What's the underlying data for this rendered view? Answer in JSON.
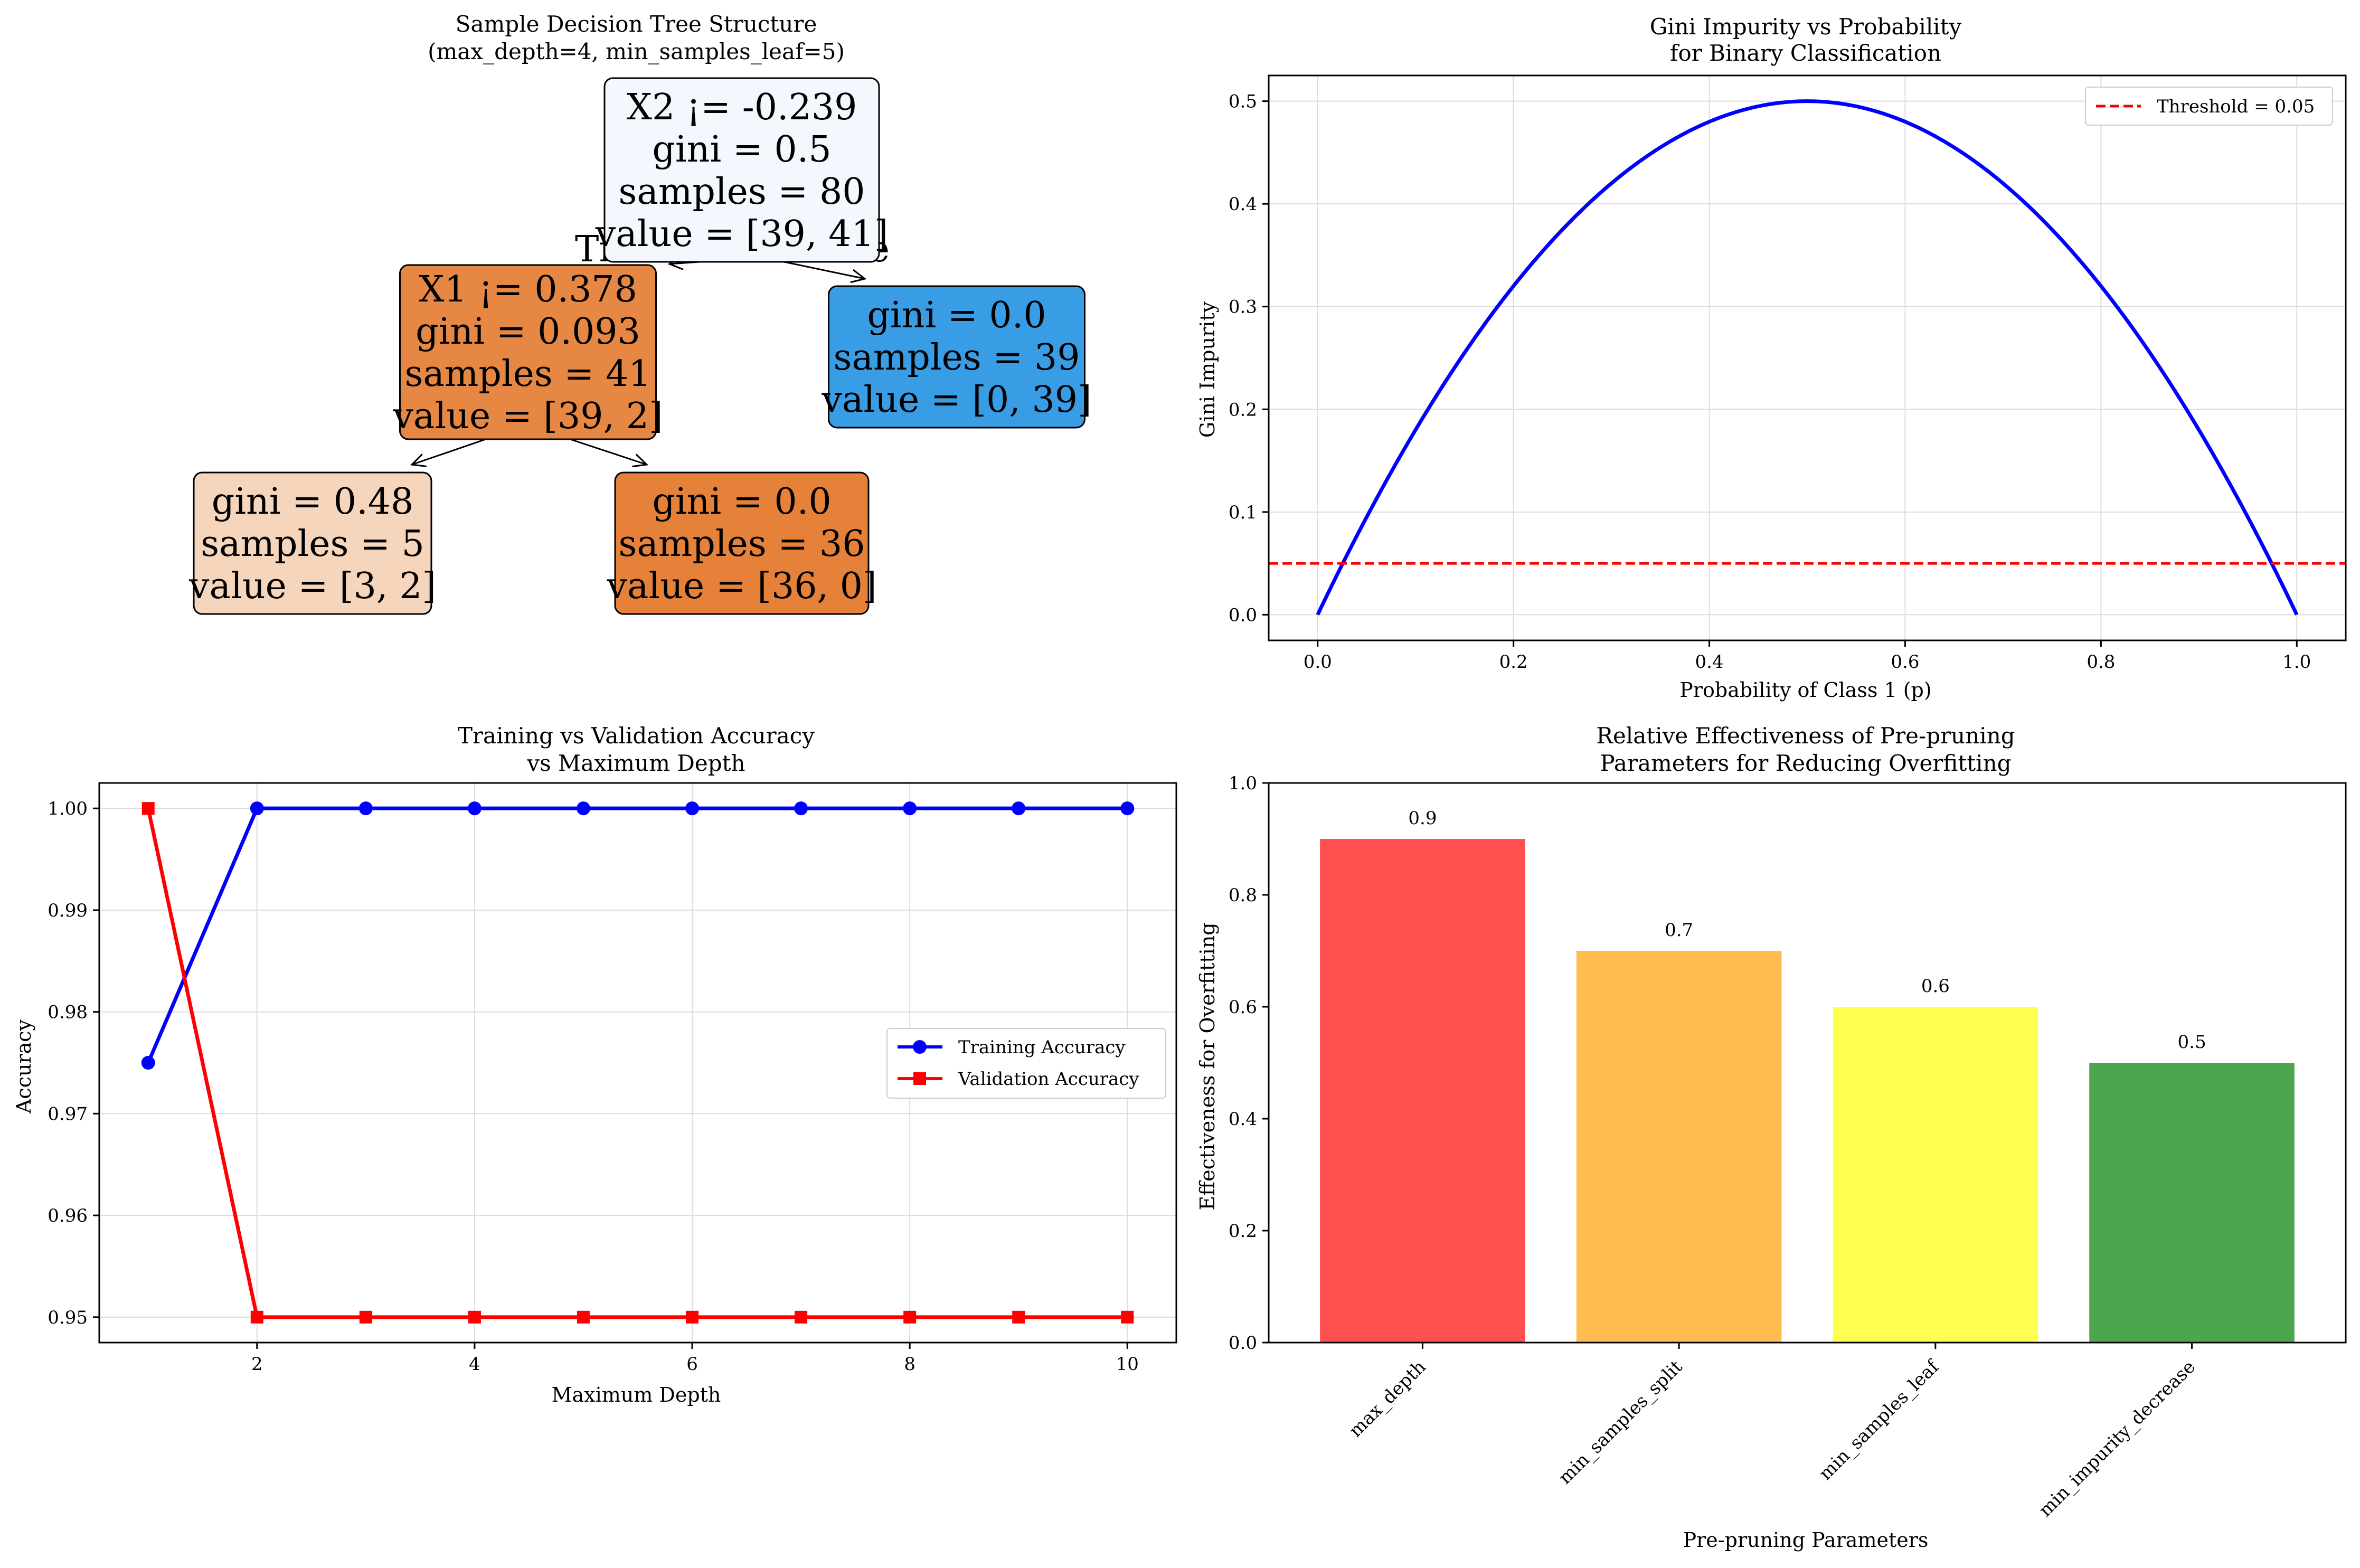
{
  "chart_data": [
    {
      "type": "tree",
      "title": "Sample Decision Tree Structure",
      "subtitle": "(max_depth=4, min_samples_leaf=5)",
      "edge_labels": {
        "left": "True",
        "right": "False"
      },
      "nodes": [
        {
          "id": "root",
          "lines": [
            "X2 ¡= -0.239",
            "gini = 0.5",
            "samples = 80",
            "value = [39, 41]"
          ],
          "color": "#f2f8fd"
        },
        {
          "id": "left",
          "lines": [
            "X1 ¡= 0.378",
            "gini = 0.093",
            "samples = 41",
            "value = [39, 2]"
          ],
          "color": "#e68743"
        },
        {
          "id": "right",
          "lines": [
            "gini = 0.0",
            "samples = 39",
            "value = [0, 39]"
          ],
          "color": "#399de5"
        },
        {
          "id": "leftleft",
          "lines": [
            "gini = 0.48",
            "samples = 5",
            "value = [3, 2]"
          ],
          "color": "#f6d5bd"
        },
        {
          "id": "leftright",
          "lines": [
            "gini = 0.0",
            "samples = 36",
            "value = [36, 0]"
          ],
          "color": "#e58139"
        }
      ]
    },
    {
      "type": "line",
      "title": "Gini Impurity vs Probability",
      "subtitle": "for Binary Classification",
      "xlabel": "Probability of Class 1 (p)",
      "ylabel": "Gini Impurity",
      "function": "2*p*(1-p)",
      "xlim": [
        -0.05,
        1.05
      ],
      "ylim": [
        -0.025,
        0.525
      ],
      "xticks": [
        "0.0",
        "0.2",
        "0.4",
        "0.6",
        "0.8",
        "1.0"
      ],
      "yticks": [
        "0.0",
        "0.1",
        "0.2",
        "0.3",
        "0.4",
        "0.5"
      ],
      "series": [
        {
          "values_from": "function",
          "color": "#0000ff"
        }
      ],
      "threshold": {
        "name": "Threshold = 0.05",
        "value": 0.05,
        "color": "#ff0000"
      },
      "grid": true,
      "legend": "top-right"
    },
    {
      "type": "line",
      "title": "Training vs Validation Accuracy",
      "subtitle": "vs Maximum Depth",
      "xlabel": "Maximum Depth",
      "ylabel": "Accuracy",
      "x": [
        1,
        2,
        3,
        4,
        5,
        6,
        7,
        8,
        9,
        10
      ],
      "xlim": [
        0.55,
        10.45
      ],
      "ylim": [
        0.9475,
        1.0025
      ],
      "xticks": [
        "2",
        "4",
        "6",
        "8",
        "10"
      ],
      "yticks": [
        "0.95",
        "0.96",
        "0.97",
        "0.98",
        "0.99",
        "1.00"
      ],
      "series": [
        {
          "name": "Training Accuracy",
          "values": [
            0.975,
            1.0,
            1.0,
            1.0,
            1.0,
            1.0,
            1.0,
            1.0,
            1.0,
            1.0
          ],
          "color": "#0000ff",
          "marker": "circle"
        },
        {
          "name": "Validation Accuracy",
          "values": [
            1.0,
            0.95,
            0.95,
            0.95,
            0.95,
            0.95,
            0.95,
            0.95,
            0.95,
            0.95
          ],
          "color": "#ff0000",
          "marker": "square"
        }
      ],
      "grid": true,
      "legend": "center-right"
    },
    {
      "type": "bar",
      "title": "Relative Effectiveness of Pre-pruning",
      "subtitle": "Parameters for Reducing Overfitting",
      "xlabel": "Pre-pruning Parameters",
      "ylabel": "Effectiveness for Overfitting",
      "categories": [
        "max_depth",
        "min_samples_split",
        "min_samples_leaf",
        "min_impurity_decrease"
      ],
      "values": [
        0.9,
        0.7,
        0.6,
        0.5
      ],
      "data_labels": [
        "0.9",
        "0.7",
        "0.6",
        "0.5"
      ],
      "colors": [
        "#ff4f4f",
        "#ffbd4f",
        "#ffff4f",
        "#4da64d"
      ],
      "ylim": [
        0,
        1.0
      ],
      "yticks": [
        "0.0",
        "0.2",
        "0.4",
        "0.6",
        "0.8",
        "1.0"
      ],
      "grid": false
    }
  ]
}
